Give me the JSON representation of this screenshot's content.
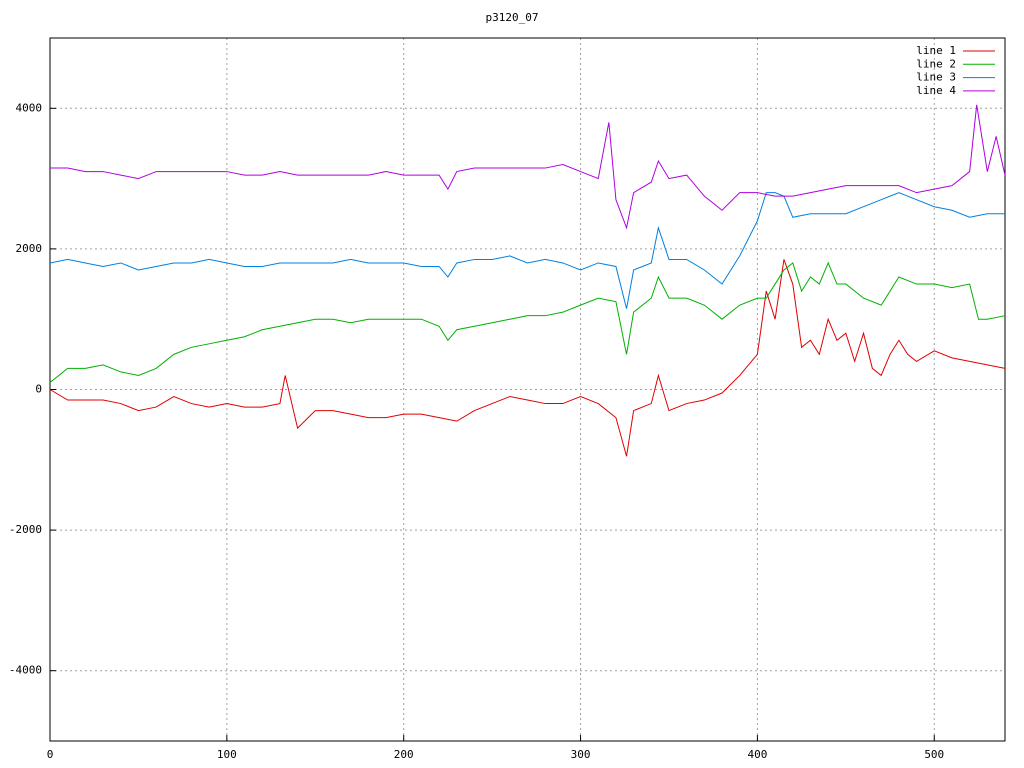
{
  "chart_data": {
    "type": "line",
    "title": "p3120_07",
    "xlim": [
      0,
      540
    ],
    "ylim": [
      -5000,
      5000
    ],
    "xticks": [
      0,
      100,
      200,
      300,
      400,
      500
    ],
    "yticks": [
      -4000,
      -2000,
      0,
      2000,
      4000
    ],
    "grid": true,
    "legend": "top-right",
    "series": [
      {
        "name": "line 1",
        "color": "#e00000",
        "x": [
          0,
          10,
          20,
          30,
          40,
          50,
          60,
          70,
          80,
          90,
          100,
          110,
          120,
          130,
          133,
          140,
          150,
          160,
          170,
          180,
          190,
          200,
          210,
          220,
          230,
          240,
          250,
          260,
          270,
          280,
          290,
          300,
          310,
          320,
          326,
          330,
          340,
          344,
          350,
          360,
          370,
          380,
          390,
          400,
          405,
          410,
          415,
          420,
          425,
          430,
          435,
          440,
          445,
          450,
          455,
          460,
          465,
          470,
          475,
          480,
          485,
          490,
          500,
          510,
          520,
          530,
          540
        ],
        "values": [
          0,
          -150,
          -150,
          -150,
          -200,
          -300,
          -250,
          -100,
          -200,
          -250,
          -200,
          -250,
          -250,
          -200,
          200,
          -550,
          -300,
          -300,
          -350,
          -400,
          -400,
          -350,
          -350,
          -400,
          -450,
          -300,
          -200,
          -100,
          -150,
          -200,
          -200,
          -100,
          -200,
          -400,
          -950,
          -300,
          -200,
          200,
          -300,
          -200,
          -150,
          -50,
          200,
          500,
          1400,
          1000,
          1850,
          1500,
          600,
          700,
          500,
          1000,
          700,
          800,
          400,
          800,
          300,
          200,
          500,
          700,
          500,
          400,
          550,
          450,
          400,
          350,
          300
        ]
      },
      {
        "name": "line 2",
        "color": "#00b000",
        "x": [
          0,
          10,
          20,
          30,
          40,
          50,
          60,
          70,
          80,
          90,
          100,
          110,
          120,
          130,
          140,
          150,
          160,
          170,
          180,
          190,
          200,
          210,
          220,
          225,
          230,
          240,
          250,
          260,
          270,
          280,
          290,
          300,
          310,
          320,
          326,
          330,
          340,
          344,
          350,
          360,
          370,
          380,
          390,
          400,
          405,
          410,
          415,
          420,
          425,
          430,
          435,
          440,
          445,
          450,
          460,
          470,
          480,
          490,
          500,
          510,
          520,
          525,
          530,
          540
        ],
        "values": [
          100,
          300,
          300,
          350,
          250,
          200,
          300,
          500,
          600,
          650,
          700,
          750,
          850,
          900,
          950,
          1000,
          1000,
          950,
          1000,
          1000,
          1000,
          1000,
          900,
          700,
          850,
          900,
          950,
          1000,
          1050,
          1050,
          1100,
          1200,
          1300,
          1250,
          500,
          1100,
          1300,
          1600,
          1300,
          1300,
          1200,
          1000,
          1200,
          1300,
          1300,
          1500,
          1700,
          1800,
          1400,
          1600,
          1500,
          1800,
          1500,
          1500,
          1300,
          1200,
          1600,
          1500,
          1500,
          1450,
          1500,
          1000,
          1000,
          1050
        ]
      },
      {
        "name": "line 3",
        "color": "#0080e0",
        "x": [
          0,
          10,
          20,
          30,
          40,
          50,
          60,
          70,
          80,
          90,
          100,
          110,
          120,
          130,
          140,
          150,
          160,
          170,
          180,
          190,
          200,
          210,
          220,
          225,
          230,
          240,
          250,
          260,
          270,
          280,
          290,
          300,
          310,
          320,
          326,
          330,
          340,
          344,
          350,
          360,
          370,
          380,
          390,
          400,
          405,
          410,
          415,
          420,
          430,
          440,
          450,
          460,
          470,
          480,
          490,
          500,
          510,
          520,
          530,
          540
        ],
        "values": [
          1800,
          1850,
          1800,
          1750,
          1800,
          1700,
          1750,
          1800,
          1800,
          1850,
          1800,
          1750,
          1750,
          1800,
          1800,
          1800,
          1800,
          1850,
          1800,
          1800,
          1800,
          1750,
          1750,
          1600,
          1800,
          1850,
          1850,
          1900,
          1800,
          1850,
          1800,
          1700,
          1800,
          1750,
          1150,
          1700,
          1800,
          2300,
          1850,
          1850,
          1700,
          1500,
          1900,
          2400,
          2800,
          2800,
          2750,
          2450,
          2500,
          2500,
          2500,
          2600,
          2700,
          2800,
          2700,
          2600,
          2550,
          2450,
          2500,
          2500
        ]
      },
      {
        "name": "line 4",
        "color": "#b000e0",
        "x": [
          0,
          10,
          20,
          30,
          40,
          50,
          60,
          70,
          80,
          90,
          100,
          110,
          120,
          130,
          140,
          150,
          160,
          170,
          180,
          190,
          200,
          210,
          220,
          225,
          230,
          240,
          250,
          260,
          270,
          280,
          290,
          300,
          310,
          316,
          320,
          326,
          330,
          340,
          344,
          350,
          360,
          370,
          380,
          390,
          400,
          410,
          420,
          430,
          440,
          450,
          460,
          470,
          480,
          490,
          500,
          510,
          520,
          524,
          530,
          535,
          540
        ],
        "values": [
          3150,
          3150,
          3100,
          3100,
          3050,
          3000,
          3100,
          3100,
          3100,
          3100,
          3100,
          3050,
          3050,
          3100,
          3050,
          3050,
          3050,
          3050,
          3050,
          3100,
          3050,
          3050,
          3050,
          2850,
          3100,
          3150,
          3150,
          3150,
          3150,
          3150,
          3200,
          3100,
          3000,
          3800,
          2700,
          2300,
          2800,
          2950,
          3250,
          3000,
          3050,
          2750,
          2550,
          2800,
          2800,
          2750,
          2750,
          2800,
          2850,
          2900,
          2900,
          2900,
          2900,
          2800,
          2850,
          2900,
          3100,
          4050,
          3100,
          3600,
          3050
        ]
      }
    ]
  }
}
